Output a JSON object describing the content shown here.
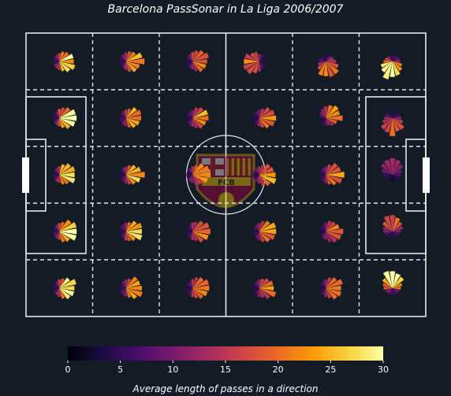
{
  "title": "Barcelona PassSonar in La Liga 2006/2007",
  "colorbar": {
    "label": "Average length of passes in a direction",
    "ticks": [
      0,
      5,
      10,
      15,
      20,
      25,
      30
    ],
    "range": [
      0,
      30
    ],
    "colormap": "inferno",
    "stops": [
      "#000004",
      "#1b0c41",
      "#4a0c6b",
      "#781c6d",
      "#a52c60",
      "#cf4446",
      "#ed6925",
      "#fb9b06",
      "#f7d13d",
      "#fcffa4"
    ]
  },
  "pitch": {
    "background": "#131c26",
    "line_color": "#e6e6e6",
    "grid_columns": 6,
    "grid_rows": 5,
    "badge_text": "FCB"
  },
  "chart_data": {
    "type": "polar-bar-grid",
    "title": "Barcelona PassSonar in La Liga 2006/2007",
    "directions_per_zone": 16,
    "value_meaning": "average pass length (colour) per direction in each pitch zone",
    "color_range": [
      0,
      30
    ],
    "zones": [
      {
        "row": 0,
        "col": 0,
        "dominant_angle_deg": 0,
        "mean_length": 28
      },
      {
        "row": 0,
        "col": 1,
        "dominant_angle_deg": 0,
        "mean_length": 24
      },
      {
        "row": 0,
        "col": 2,
        "dominant_angle_deg": 10,
        "mean_length": 22
      },
      {
        "row": 0,
        "col": 3,
        "dominant_angle_deg": 190,
        "mean_length": 20
      },
      {
        "row": 0,
        "col": 4,
        "dominant_angle_deg": 290,
        "mean_length": 22
      },
      {
        "row": 0,
        "col": 5,
        "dominant_angle_deg": 260,
        "mean_length": 29
      },
      {
        "row": 1,
        "col": 0,
        "dominant_angle_deg": 0,
        "mean_length": 28
      },
      {
        "row": 1,
        "col": 1,
        "dominant_angle_deg": 0,
        "mean_length": 24
      },
      {
        "row": 1,
        "col": 2,
        "dominant_angle_deg": 0,
        "mean_length": 22
      },
      {
        "row": 1,
        "col": 3,
        "dominant_angle_deg": 0,
        "mean_length": 20
      },
      {
        "row": 1,
        "col": 4,
        "dominant_angle_deg": 30,
        "mean_length": 20
      },
      {
        "row": 1,
        "col": 5,
        "dominant_angle_deg": 270,
        "mean_length": 18
      },
      {
        "row": 2,
        "col": 0,
        "dominant_angle_deg": 0,
        "mean_length": 28
      },
      {
        "row": 2,
        "col": 1,
        "dominant_angle_deg": 0,
        "mean_length": 24
      },
      {
        "row": 2,
        "col": 2,
        "dominant_angle_deg": 0,
        "mean_length": 22
      },
      {
        "row": 2,
        "col": 3,
        "dominant_angle_deg": 0,
        "mean_length": 22
      },
      {
        "row": 2,
        "col": 4,
        "dominant_angle_deg": 0,
        "mean_length": 20
      },
      {
        "row": 2,
        "col": 5,
        "dominant_angle_deg": 90,
        "mean_length": 11
      },
      {
        "row": 3,
        "col": 0,
        "dominant_angle_deg": 0,
        "mean_length": 28
      },
      {
        "row": 3,
        "col": 1,
        "dominant_angle_deg": 0,
        "mean_length": 24
      },
      {
        "row": 3,
        "col": 2,
        "dominant_angle_deg": 0,
        "mean_length": 22
      },
      {
        "row": 3,
        "col": 3,
        "dominant_angle_deg": 0,
        "mean_length": 22
      },
      {
        "row": 3,
        "col": 4,
        "dominant_angle_deg": 0,
        "mean_length": 20
      },
      {
        "row": 3,
        "col": 5,
        "dominant_angle_deg": 90,
        "mean_length": 18
      },
      {
        "row": 4,
        "col": 0,
        "dominant_angle_deg": 0,
        "mean_length": 28
      },
      {
        "row": 4,
        "col": 1,
        "dominant_angle_deg": 0,
        "mean_length": 24
      },
      {
        "row": 4,
        "col": 2,
        "dominant_angle_deg": 0,
        "mean_length": 22
      },
      {
        "row": 4,
        "col": 3,
        "dominant_angle_deg": 0,
        "mean_length": 20
      },
      {
        "row": 4,
        "col": 4,
        "dominant_angle_deg": 0,
        "mean_length": 20
      },
      {
        "row": 4,
        "col": 5,
        "dominant_angle_deg": 90,
        "mean_length": 29
      }
    ]
  }
}
